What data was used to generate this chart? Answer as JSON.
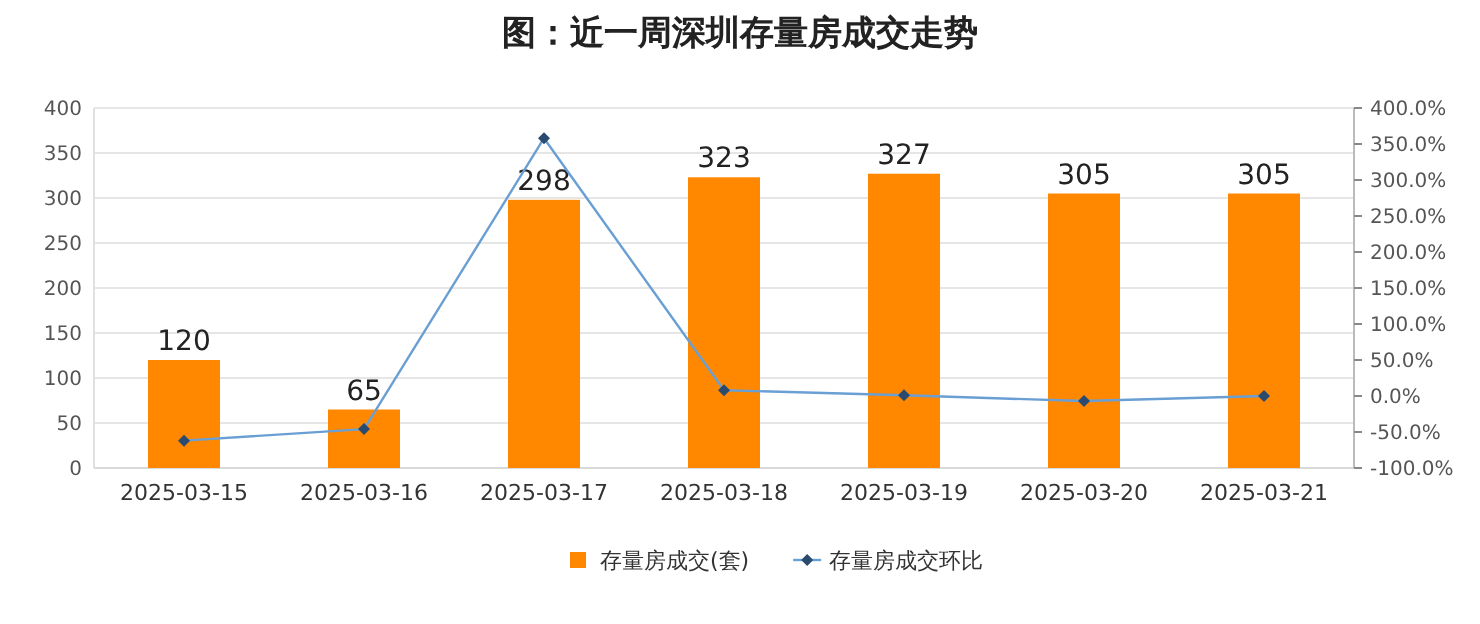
{
  "chart_data": {
    "type": "bar",
    "title": "图：近一周深圳存量房成交走势",
    "categories": [
      "2025-03-15",
      "2025-03-16",
      "2025-03-17",
      "2025-03-18",
      "2025-03-19",
      "2025-03-20",
      "2025-03-21"
    ],
    "series": [
      {
        "name": "存量房成交(套)",
        "color": "#ff8800",
        "values": [
          120,
          65,
          298,
          323,
          327,
          305,
          305
        ],
        "value_labels": [
          "120",
          "65",
          "298",
          "323",
          "327",
          "305",
          "305"
        ]
      },
      {
        "name": "存量房成交环比",
        "type": "line",
        "axis": "y2",
        "color": "#6a9fd4",
        "marker": "diamond",
        "values": [
          -62,
          -46,
          358,
          8,
          1,
          -7,
          0
        ]
      }
    ],
    "ylim": [
      0,
      400
    ],
    "yticks": [
      0,
      50,
      100,
      150,
      200,
      250,
      300,
      350,
      400
    ],
    "y2lim": [
      -100,
      400
    ],
    "y2ticks": [
      {
        "value": -100,
        "label": "-100.0%"
      },
      {
        "value": -50,
        "label": "-50.0%"
      },
      {
        "value": 0,
        "label": "0.0%"
      },
      {
        "value": 50,
        "label": "50.0%"
      },
      {
        "value": 100,
        "label": "100.0%"
      },
      {
        "value": 150,
        "label": "150.0%"
      },
      {
        "value": 200,
        "label": "200.0%"
      },
      {
        "value": 250,
        "label": "250.0%"
      },
      {
        "value": 300,
        "label": "300.0%"
      },
      {
        "value": 350,
        "label": "350.0%"
      },
      {
        "value": 400,
        "label": "400.0%"
      }
    ],
    "grid": "y",
    "legend": "bottom"
  }
}
